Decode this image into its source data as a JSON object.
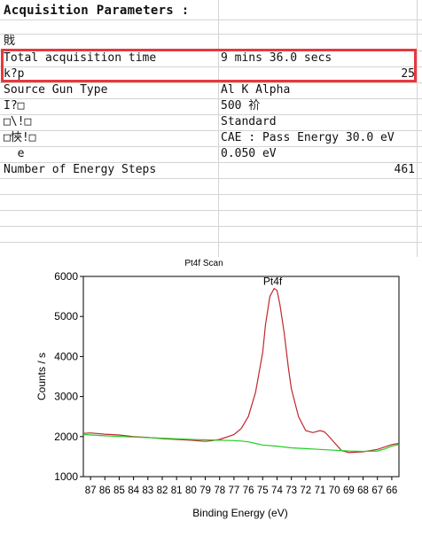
{
  "table": {
    "rows": [
      {
        "label": "Acquisition Parameters :",
        "value": "",
        "count": ""
      },
      {
        "label": "戝",
        "value": "",
        "count": ""
      },
      {
        "label": "Total acquisition time",
        "value": "9 mins 36.0 secs",
        "count": ""
      },
      {
        "label": "k?p",
        "value": "",
        "count": "25"
      },
      {
        "label": "Source Gun Type",
        "value": "Al K Alpha",
        "count": ""
      },
      {
        "label": "I?□",
        "value": "500 祄",
        "count": ""
      },
      {
        "label": "□\\!□",
        "value": "Standard",
        "count": ""
      },
      {
        "label": "□悏!□",
        "value": "CAE : Pass Energy 30.0 eV",
        "count": ""
      },
      {
        "label": "  e",
        "value": "0.050 eV",
        "count": ""
      },
      {
        "label": "Number of Energy Steps",
        "value": "",
        "count": "461"
      }
    ],
    "highlight_color": "#e8383d"
  },
  "chart_data": {
    "type": "line",
    "title": "Pt4f Scan",
    "xlabel": "Binding Energy (eV)",
    "ylabel": "Counts / s",
    "xlim": [
      87.5,
      65.5
    ],
    "ylim": [
      1000,
      6000
    ],
    "x_ticks": [
      87,
      86,
      85,
      84,
      83,
      82,
      81,
      80,
      79,
      78,
      77,
      76,
      75,
      74,
      73,
      72,
      71,
      70,
      69,
      68,
      67,
      66
    ],
    "y_ticks": [
      1000,
      2000,
      3000,
      4000,
      5000,
      6000
    ],
    "annotation": {
      "text": "Pt4f",
      "x": 74.3,
      "y": 5750
    },
    "series": [
      {
        "color": "#c0272d",
        "x": [
          87.5,
          87,
          86,
          85,
          84,
          83,
          82,
          81,
          80,
          79,
          78.5,
          78,
          77.5,
          77,
          76.5,
          76,
          75.5,
          75,
          74.8,
          74.5,
          74.2,
          74,
          73.8,
          73.5,
          73.2,
          73,
          72.5,
          72,
          71.5,
          71,
          70.7,
          70.5,
          70,
          69.5,
          69,
          68.5,
          68,
          67.5,
          67,
          66.5,
          66,
          65.5
        ],
        "y": [
          2080,
          2090,
          2060,
          2040,
          2000,
          1980,
          1950,
          1930,
          1910,
          1880,
          1900,
          1930,
          1990,
          2050,
          2200,
          2500,
          3100,
          4100,
          4800,
          5500,
          5700,
          5650,
          5300,
          4600,
          3700,
          3200,
          2500,
          2150,
          2100,
          2150,
          2120,
          2050,
          1850,
          1650,
          1600,
          1610,
          1620,
          1650,
          1680,
          1740,
          1800,
          1830
        ]
      },
      {
        "color": "#1fcf1f",
        "x": [
          87.5,
          86,
          84,
          82,
          80,
          78,
          77,
          76.5,
          76,
          75.5,
          75,
          74,
          73,
          72,
          71,
          70,
          69,
          68,
          67,
          66.5,
          66,
          65.5
        ],
        "y": [
          2050,
          2020,
          1990,
          1960,
          1930,
          1910,
          1900,
          1890,
          1870,
          1830,
          1790,
          1760,
          1720,
          1700,
          1680,
          1660,
          1640,
          1630,
          1640,
          1690,
          1760,
          1800
        ]
      }
    ]
  }
}
